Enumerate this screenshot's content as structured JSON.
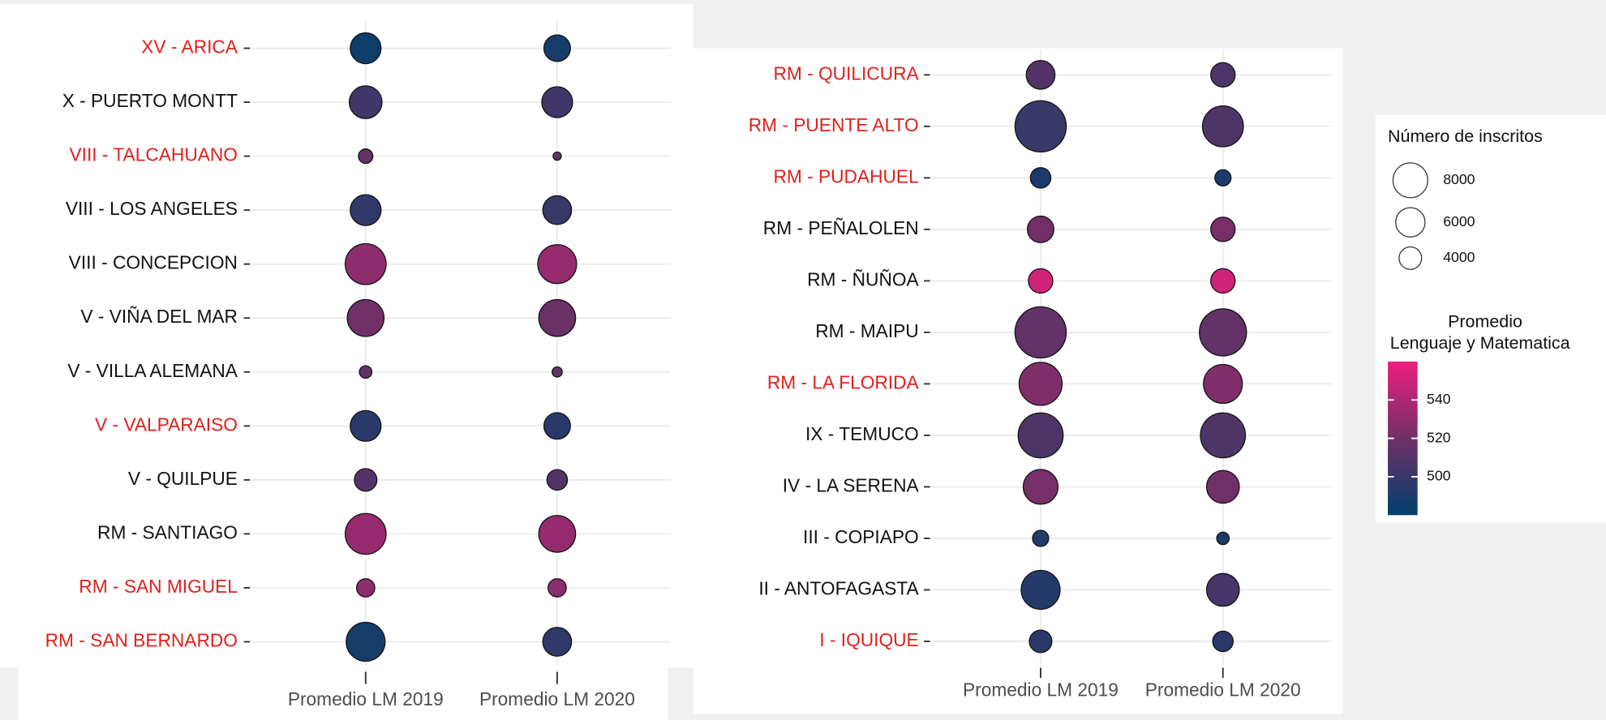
{
  "chart_data": [
    {
      "type": "bubble",
      "categories": [
        "XV - ARICA",
        "X - PUERTO MONTT",
        "VIII - TALCAHUANO",
        "VIII - LOS ANGELES",
        "VIII - CONCEPCION",
        "V - VIÑA DEL MAR",
        "V - VILLA ALEMANA",
        "V - VALPARAISO",
        "V - QUILPUE",
        "RM - SANTIAGO",
        "RM - SAN MIGUEL",
        "RM - SAN BERNARDO"
      ],
      "label_colors": [
        "#e0201c",
        "#111111",
        "#e0201c",
        "#111111",
        "#111111",
        "#111111",
        "#111111",
        "#e0201c",
        "#111111",
        "#111111",
        "#e0201c",
        "#e0201c"
      ],
      "series": [
        {
          "name": "Promedio LM 2019",
          "values": [
            485,
            503,
            515,
            497,
            530,
            520,
            515,
            495,
            510,
            532,
            530,
            488
          ],
          "sizes": [
            6500,
            7200,
            2300,
            6500,
            10600,
            8800,
            2000,
            6500,
            4000,
            10600,
            3000,
            9700
          ]
        },
        {
          "name": "Promedio LM 2020",
          "values": [
            488,
            503,
            515,
            500,
            532,
            518,
            515,
            495,
            510,
            532,
            528,
            497
          ],
          "sizes": [
            5100,
            6500,
            1500,
            5800,
            9700,
            8800,
            1700,
            5100,
            3500,
            8800,
            3000,
            5800
          ]
        }
      ]
    },
    {
      "type": "bubble",
      "categories": [
        "RM - QUILICURA",
        "RM - PUENTE ALTO",
        "RM - PUDAHUEL",
        "RM - PEÑALOLEN",
        "RM - ÑUÑOA",
        "RM - MAIPU",
        "RM - LA FLORIDA",
        "IX - TEMUCO",
        "IV - LA SERENA",
        "III - COPIAPO",
        "II - ANTOFAGASTA",
        "I - IQUIQUE"
      ],
      "label_colors": [
        "#e0201c",
        "#e0201c",
        "#e0201c",
        "#111111",
        "#111111",
        "#111111",
        "#e0201c",
        "#111111",
        "#111111",
        "#111111",
        "#111111",
        "#e0201c"
      ],
      "series": [
        {
          "name": "Promedio LM 2019",
          "values": [
            510,
            500,
            490,
            520,
            552,
            515,
            525,
            508,
            522,
            492,
            493,
            495
          ],
          "sizes": [
            5800,
            16000,
            3500,
            5100,
            4500,
            16000,
            11600,
            12600,
            8000,
            2600,
            9700,
            4000
          ]
        },
        {
          "name": "Promedio LM 2020",
          "values": [
            508,
            508,
            490,
            522,
            550,
            515,
            525,
            508,
            520,
            490,
            505,
            495
          ],
          "sizes": [
            4500,
            10600,
            2600,
            4500,
            4500,
            13700,
            9700,
            12600,
            7200,
            2000,
            7200,
            3500
          ]
        }
      ]
    }
  ],
  "legend": {
    "size_title": "Número de inscritos",
    "size_values": [
      8000,
      6000,
      4000
    ],
    "color_title": [
      "Promedio",
      "Lenguaje y Matematica"
    ],
    "color_lim": [
      480,
      560
    ],
    "color_ticks": [
      500,
      520,
      540
    ],
    "colors": [
      "#003f6b",
      "#703067",
      "#ec1f7e"
    ]
  }
}
